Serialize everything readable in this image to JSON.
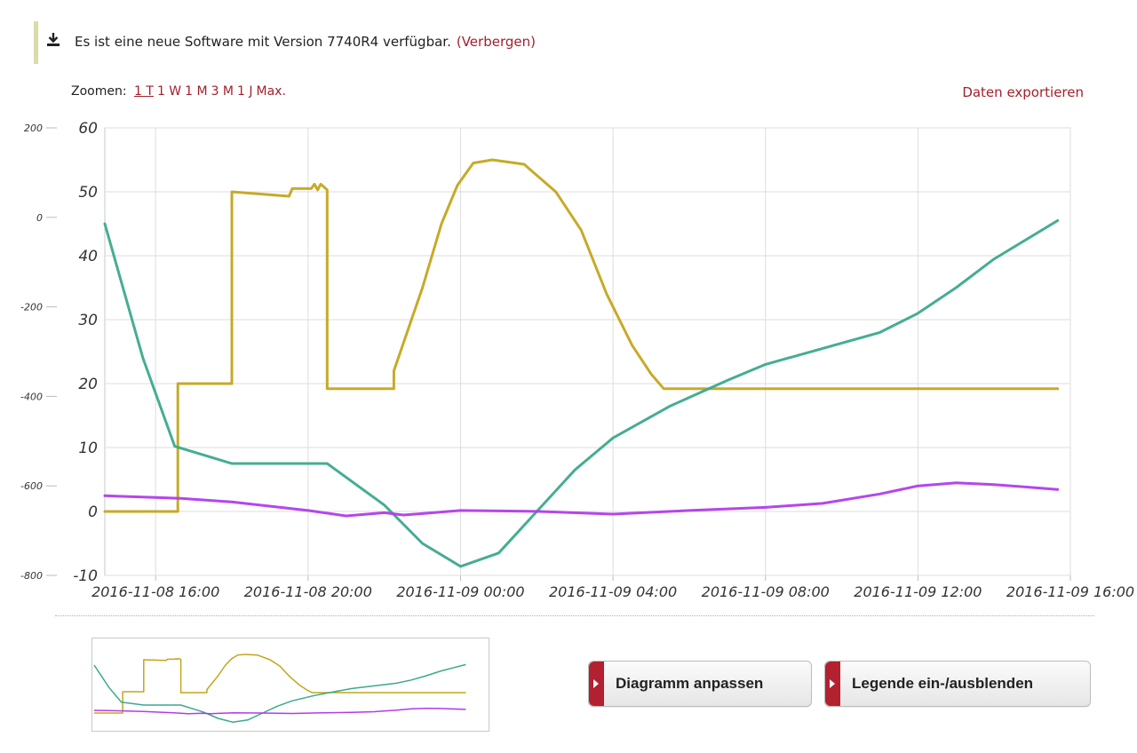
{
  "notice": {
    "icon": "download-icon",
    "text": "Es ist eine neue Software mit Version 7740R4 verfügbar.",
    "hide_label": "(Verbergen)"
  },
  "zoom": {
    "label": "Zoomen:",
    "options": [
      "1 T",
      "1 W",
      "1 M",
      "3 M",
      "1 J",
      "Max."
    ],
    "active": "1 T"
  },
  "export_label": "Daten exportieren",
  "buttons": {
    "adjust": "Diagramm anpassen",
    "legend": "Legende ein-/ausblenden"
  },
  "colors": {
    "accent": "#a2202c",
    "series_yellow": "#c4a51c",
    "series_green": "#3ba98d",
    "series_purple": "#b03ceb",
    "grid": "#dddddd"
  },
  "chart_data": {
    "type": "line",
    "x_type": "datetime",
    "x_range": [
      "2016-11-08 14:40",
      "2016-11-09 16:00"
    ],
    "x_ticks": [
      "2016-11-08 16:00",
      "2016-11-08 20:00",
      "2016-11-09 00:00",
      "2016-11-09 04:00",
      "2016-11-09 08:00",
      "2016-11-09 12:00",
      "2016-11-09 16:00"
    ],
    "y_axes": [
      {
        "side": "left-outer",
        "range": [
          -800,
          200
        ],
        "ticks": [
          200,
          0,
          -200,
          -400,
          -600,
          -800
        ]
      },
      {
        "side": "left-inner",
        "range": [
          -10,
          60
        ],
        "ticks": [
          60,
          50,
          40,
          30,
          20,
          10,
          0,
          -10
        ]
      }
    ],
    "grid": true,
    "legend": "hidden",
    "series": [
      {
        "color": "#c4a51c",
        "axis": 1,
        "points": [
          [
            "2016-11-08 14:40",
            0
          ],
          [
            "2016-11-08 16:35",
            0
          ],
          [
            "2016-11-08 16:35",
            20
          ],
          [
            "2016-11-08 18:00",
            20
          ],
          [
            "2016-11-08 18:00",
            50
          ],
          [
            "2016-11-08 19:30",
            49.3
          ],
          [
            "2016-11-08 19:35",
            50.5
          ],
          [
            "2016-11-08 20:05",
            50.5
          ],
          [
            "2016-11-08 20:10",
            51.2
          ],
          [
            "2016-11-08 20:15",
            50.3
          ],
          [
            "2016-11-08 20:20",
            51.2
          ],
          [
            "2016-11-08 20:30",
            50.3
          ],
          [
            "2016-11-08 20:30",
            19.2
          ],
          [
            "2016-11-08 22:15",
            19.2
          ],
          [
            "2016-11-08 22:15",
            22
          ],
          [
            "2016-11-08 23:00",
            35
          ],
          [
            "2016-11-08 23:30",
            45
          ],
          [
            "2016-11-08 23:55",
            51
          ],
          [
            "2016-11-09 00:20",
            54.5
          ],
          [
            "2016-11-09 00:50",
            55
          ],
          [
            "2016-11-09 01:40",
            54.3
          ],
          [
            "2016-11-09 02:30",
            50
          ],
          [
            "2016-11-09 03:10",
            44
          ],
          [
            "2016-11-09 03:50",
            34
          ],
          [
            "2016-11-09 04:30",
            26
          ],
          [
            "2016-11-09 05:00",
            21.5
          ],
          [
            "2016-11-09 05:20",
            19.2
          ],
          [
            "2016-11-09 15:40",
            19.2
          ]
        ]
      },
      {
        "color": "#3ba98d",
        "axis": 1,
        "points": [
          [
            "2016-11-08 14:40",
            45
          ],
          [
            "2016-11-08 15:40",
            24
          ],
          [
            "2016-11-08 16:30",
            10.2
          ],
          [
            "2016-11-08 18:00",
            7.5
          ],
          [
            "2016-11-08 20:30",
            7.5
          ],
          [
            "2016-11-08 22:00",
            1
          ],
          [
            "2016-11-08 23:00",
            -5
          ],
          [
            "2016-11-09 00:00",
            -8.6
          ],
          [
            "2016-11-09 01:00",
            -6.5
          ],
          [
            "2016-11-09 02:00",
            0
          ],
          [
            "2016-11-09 03:00",
            6.5
          ],
          [
            "2016-11-09 04:00",
            11.5
          ],
          [
            "2016-11-09 05:30",
            16.5
          ],
          [
            "2016-11-09 07:00",
            20.5
          ],
          [
            "2016-11-09 08:00",
            23
          ],
          [
            "2016-11-09 09:30",
            25.5
          ],
          [
            "2016-11-09 11:00",
            28
          ],
          [
            "2016-11-09 12:00",
            31
          ],
          [
            "2016-11-09 13:00",
            35
          ],
          [
            "2016-11-09 14:00",
            39.5
          ],
          [
            "2016-11-09 15:40",
            45.5
          ]
        ]
      },
      {
        "color": "#b03ceb",
        "axis": 0,
        "points": [
          [
            "2016-11-08 14:40",
            -622
          ],
          [
            "2016-11-08 16:00",
            -626
          ],
          [
            "2016-11-08 16:40",
            -628
          ],
          [
            "2016-11-08 18:00",
            -636
          ],
          [
            "2016-11-08 20:00",
            -655
          ],
          [
            "2016-11-08 21:00",
            -667
          ],
          [
            "2016-11-08 22:00",
            -660
          ],
          [
            "2016-11-08 22:30",
            -665
          ],
          [
            "2016-11-08 23:00",
            -662
          ],
          [
            "2016-11-09 00:00",
            -655
          ],
          [
            "2016-11-09 02:00",
            -657
          ],
          [
            "2016-11-09 04:00",
            -663
          ],
          [
            "2016-11-09 06:00",
            -655
          ],
          [
            "2016-11-09 08:00",
            -648
          ],
          [
            "2016-11-09 09:30",
            -639
          ],
          [
            "2016-11-09 11:00",
            -618
          ],
          [
            "2016-11-09 12:00",
            -600
          ],
          [
            "2016-11-09 13:00",
            -593
          ],
          [
            "2016-11-09 14:00",
            -597
          ],
          [
            "2016-11-09 15:40",
            -608
          ]
        ]
      }
    ]
  }
}
